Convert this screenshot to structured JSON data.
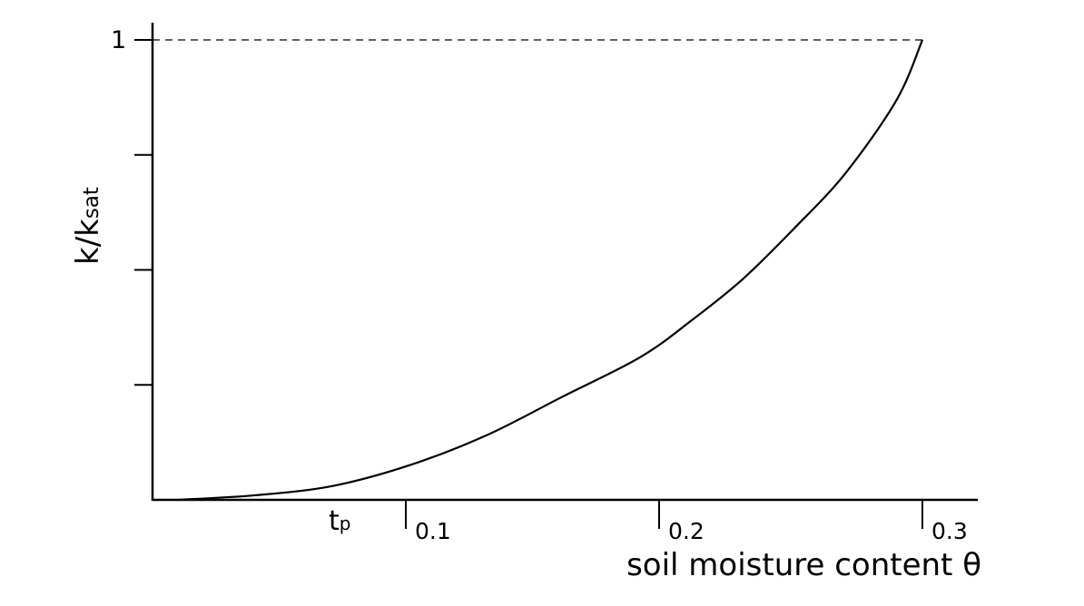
{
  "chart_data": {
    "type": "line",
    "title": "",
    "xlabel": "soil moisture content θ",
    "ylabel_main": "k/k",
    "ylabel_sub": "sat",
    "x_tick_labels": [
      "0.1",
      "0.2",
      "0.3"
    ],
    "x_ticks": [
      0.1,
      0.2,
      0.3
    ],
    "x_marker": {
      "main": "t",
      "sub": "p"
    },
    "y_tick_labels": [
      "1"
    ],
    "y_ticks": [
      0.25,
      0.5,
      0.75,
      1.0
    ],
    "xlim": [
      0.0,
      0.325
    ],
    "ylim": [
      0,
      1
    ],
    "reference_line": {
      "y": 1,
      "style": "dashed"
    },
    "series": [
      {
        "x": [
          0.01,
          0.04,
          0.07,
          0.1,
          0.13,
          0.16,
          0.19,
          0.21,
          0.23,
          0.25,
          0.27,
          0.29,
          0.3
        ],
        "y": [
          0.0,
          0.01,
          0.03,
          0.075,
          0.14,
          0.225,
          0.31,
          0.39,
          0.48,
          0.59,
          0.71,
          0.87,
          1.0
        ]
      }
    ],
    "grid": false,
    "legend": "none"
  }
}
